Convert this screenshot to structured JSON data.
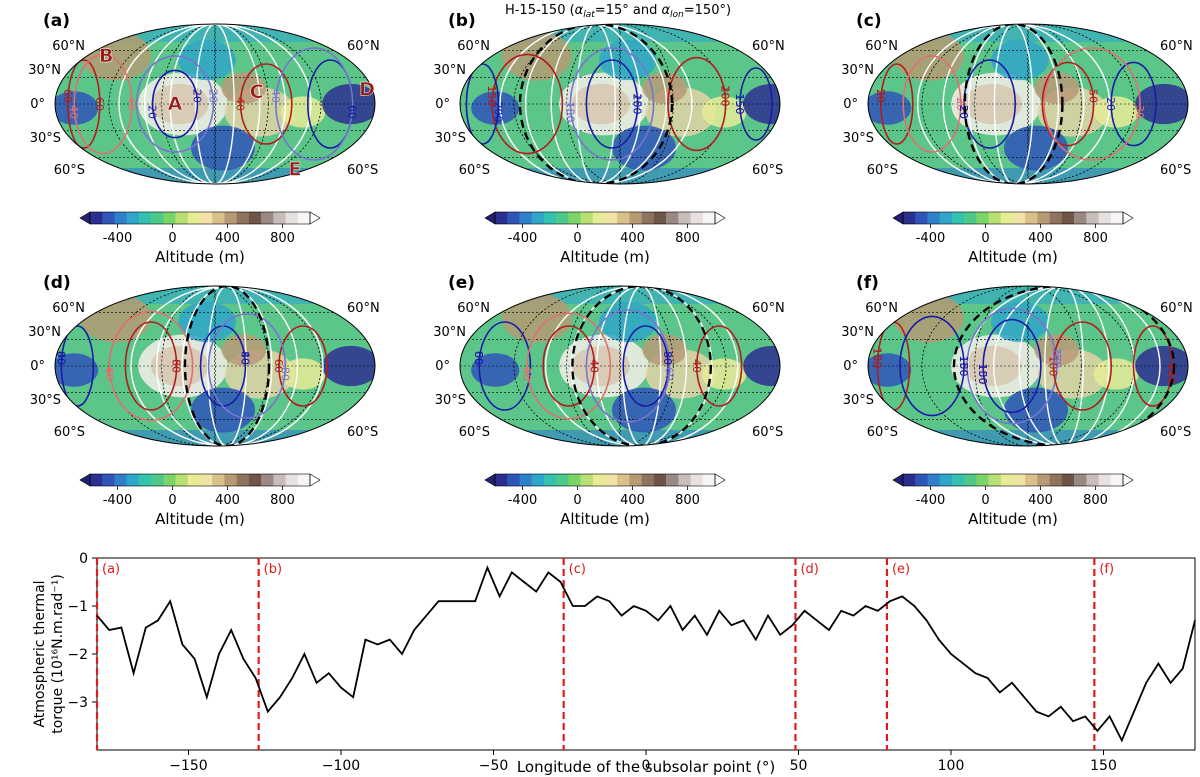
{
  "title": "H-15-150 (αlat=15° and αlon=150°)",
  "title_parts": {
    "prefix": "H-15-150 (",
    "a1": "α",
    "s1": "lat",
    "mid": "=15° and ",
    "a2": "α",
    "s2": "lon",
    "suffix": "=150°)"
  },
  "map_lat_labels_left": [
    "60°N",
    "30°N",
    "0°",
    "30°S",
    "60°S"
  ],
  "map_lat_labels_right": [
    "60°N",
    "60°S"
  ],
  "region_labels": [
    "A",
    "B",
    "C",
    "D",
    "E"
  ],
  "colorbar": {
    "label": "Altitude (m)",
    "ticks": [
      "-400",
      "0",
      "400",
      "800"
    ],
    "colors": [
      "#2b2f8f",
      "#2f55b8",
      "#2f7fc9",
      "#2fa6c9",
      "#33c2b0",
      "#4cc98a",
      "#7ad46a",
      "#b8df72",
      "#e6eb96",
      "#f1e3a6",
      "#d9c08a",
      "#b79a73",
      "#8f735f",
      "#6e5548",
      "#9a8884",
      "#c8bdbb",
      "#e6e0df",
      "#f7f5f5"
    ]
  },
  "maps": [
    {
      "tag": "(a)",
      "contours": [
        "60",
        "40",
        "20",
        "20",
        "40",
        "60",
        "40",
        "60",
        "40",
        "20"
      ]
    },
    {
      "tag": "(b)",
      "contours": [
        "150",
        "200",
        "100",
        "200",
        "150",
        "200",
        "150",
        "150",
        "100",
        "100",
        "150"
      ]
    },
    {
      "tag": "(c)",
      "contours": [
        "50",
        "20",
        "20",
        "50",
        "20",
        "30",
        "20",
        "30",
        "20"
      ]
    },
    {
      "tag": "(d)",
      "contours": [
        "80",
        "60",
        "40",
        "80",
        "60",
        "80",
        "40",
        "80",
        "60",
        "40"
      ]
    },
    {
      "tag": "(e)",
      "contours": [
        "60",
        "40",
        "80",
        "80",
        "40",
        "60",
        "80",
        "40",
        "60",
        "80"
      ]
    },
    {
      "tag": "(f)",
      "contours": [
        "150",
        "100",
        "150",
        "50",
        "100",
        "150",
        "100",
        "150",
        "100",
        "150"
      ]
    }
  ],
  "chart_data": {
    "type": "line",
    "xlabel": "Longitude of the subsolar point (°)",
    "ylabel_lines": [
      "Atmospheric thermal",
      "torque (10¹⁶N.m.rad⁻¹)"
    ],
    "xlim": [
      -180,
      180
    ],
    "ylim": [
      -4,
      0
    ],
    "xticks": [
      -150,
      -100,
      -50,
      0,
      50,
      100,
      150
    ],
    "yticks": [
      -3,
      -2,
      -1,
      0
    ],
    "markers": [
      {
        "x": -180,
        "label": "(a)"
      },
      {
        "x": -127,
        "label": "(b)"
      },
      {
        "x": -27,
        "label": "(c)"
      },
      {
        "x": 49,
        "label": "(d)"
      },
      {
        "x": 79,
        "label": "(e)"
      },
      {
        "x": 147,
        "label": "(f)"
      }
    ],
    "x": [
      -180,
      -176,
      -172,
      -168,
      -164,
      -160,
      -156,
      -152,
      -148,
      -144,
      -140,
      -136,
      -132,
      -128,
      -124,
      -120,
      -116,
      -112,
      -108,
      -104,
      -100,
      -96,
      -92,
      -88,
      -84,
      -80,
      -76,
      -72,
      -68,
      -64,
      -60,
      -56,
      -52,
      -48,
      -44,
      -40,
      -36,
      -32,
      -28,
      -24,
      -20,
      -16,
      -12,
      -8,
      -4,
      0,
      4,
      8,
      12,
      16,
      20,
      24,
      28,
      32,
      36,
      40,
      44,
      48,
      52,
      56,
      60,
      64,
      68,
      72,
      76,
      80,
      84,
      88,
      92,
      96,
      100,
      104,
      108,
      112,
      116,
      120,
      124,
      128,
      132,
      136,
      140,
      144,
      148,
      152,
      156,
      160,
      164,
      168,
      172,
      176,
      180
    ],
    "y": [
      -1.2,
      -1.5,
      -1.45,
      -2.4,
      -1.45,
      -1.3,
      -0.9,
      -1.8,
      -2.1,
      -2.9,
      -2.0,
      -1.5,
      -2.1,
      -2.5,
      -3.2,
      -2.9,
      -2.5,
      -2.0,
      -2.6,
      -2.4,
      -2.7,
      -2.9,
      -1.7,
      -1.8,
      -1.7,
      -2.0,
      -1.5,
      -1.2,
      -0.9,
      -0.9,
      -0.9,
      -0.9,
      -0.2,
      -0.8,
      -0.3,
      -0.5,
      -0.7,
      -0.3,
      -0.5,
      -1.0,
      -1.0,
      -0.8,
      -0.9,
      -1.2,
      -1.0,
      -1.1,
      -1.3,
      -1.0,
      -1.5,
      -1.2,
      -1.6,
      -1.1,
      -1.4,
      -1.3,
      -1.7,
      -1.2,
      -1.6,
      -1.4,
      -1.1,
      -1.3,
      -1.5,
      -1.1,
      -1.2,
      -1.0,
      -1.1,
      -0.9,
      -0.8,
      -1.0,
      -1.3,
      -1.7,
      -2.0,
      -2.2,
      -2.4,
      -2.5,
      -2.8,
      -2.6,
      -2.9,
      -3.2,
      -3.3,
      -3.1,
      -3.4,
      -3.3,
      -3.6,
      -3.3,
      -3.8,
      -3.2,
      -2.6,
      -2.2,
      -2.6,
      -2.3,
      -1.3
    ]
  }
}
